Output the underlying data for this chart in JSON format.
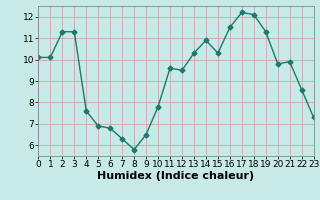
{
  "x": [
    0,
    1,
    2,
    3,
    4,
    5,
    6,
    7,
    8,
    9,
    10,
    11,
    12,
    13,
    14,
    15,
    16,
    17,
    18,
    19,
    20,
    21,
    22,
    23
  ],
  "y": [
    10.1,
    10.1,
    11.3,
    11.3,
    7.6,
    6.9,
    6.8,
    6.3,
    5.8,
    6.5,
    7.8,
    9.6,
    9.5,
    10.3,
    10.9,
    10.3,
    11.5,
    12.2,
    12.1,
    11.3,
    9.8,
    9.9,
    8.6,
    7.3
  ],
  "line_color": "#1a7a6e",
  "marker": "D",
  "marker_size": 2.5,
  "bg_color": "#c8eae6",
  "grid_color_major": "#b8c8c4",
  "grid_color_minor": "#d8e8e4",
  "xlabel": "Humidex (Indice chaleur)",
  "xlabel_fontsize": 8,
  "xlim": [
    0,
    23
  ],
  "ylim": [
    5.5,
    12.5
  ],
  "yticks": [
    6,
    7,
    8,
    9,
    10,
    11,
    12
  ],
  "xticks": [
    0,
    1,
    2,
    3,
    4,
    5,
    6,
    7,
    8,
    9,
    10,
    11,
    12,
    13,
    14,
    15,
    16,
    17,
    18,
    19,
    20,
    21,
    22,
    23
  ],
  "tick_fontsize": 6.5
}
